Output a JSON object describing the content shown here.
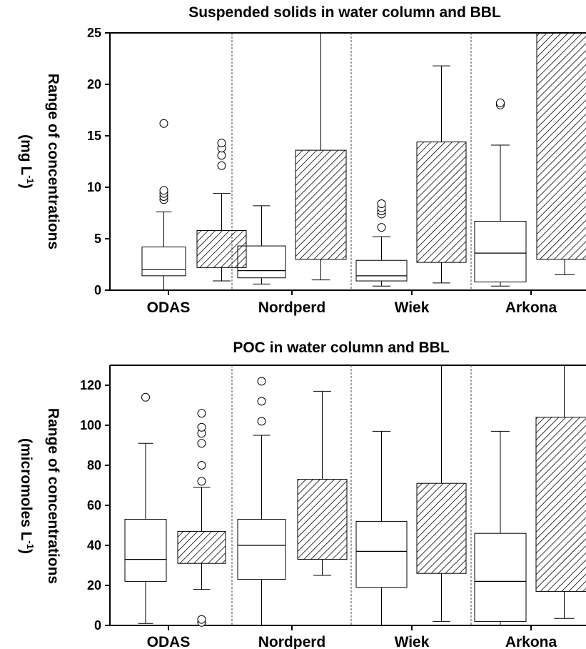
{
  "chart_data": [
    {
      "type": "box",
      "title": "Suspended solids in water column and BBL",
      "ylabel_line1": "Range of concentrations",
      "ylabel_line2_prefix": "(mg L",
      "ylabel_line2_sup": "-1",
      "ylabel_line2_suffix": ")",
      "ylim": [
        0,
        25
      ],
      "yticks": [
        "0",
        "5",
        "10",
        "15",
        "20",
        "25"
      ],
      "categories": [
        "ODAS",
        "Nordperd",
        "Wiek",
        "Arkona"
      ],
      "series": [
        {
          "style": "open",
          "boxes": [
            {
              "min": 0.0,
              "q1": 1.4,
              "median": 2.0,
              "q3": 4.2,
              "max": 7.6,
              "outliers": [
                8.8,
                9.1,
                9.4,
                9.7,
                16.2
              ]
            },
            {
              "min": 0.6,
              "q1": 1.2,
              "median": 1.9,
              "q3": 4.3,
              "max": 8.2,
              "outliers": []
            },
            {
              "min": 0.4,
              "q1": 0.9,
              "median": 1.4,
              "q3": 2.9,
              "max": 5.2,
              "outliers": [
                6.1,
                7.4,
                7.7,
                8.0,
                8.4
              ]
            },
            {
              "min": 0.4,
              "q1": 0.8,
              "median": 3.6,
              "q3": 6.7,
              "max": 14.1,
              "outliers": [
                18.0,
                18.2
              ]
            }
          ]
        },
        {
          "style": "hatched",
          "boxes": [
            {
              "min": 0.9,
              "q1": 2.2,
              "q3": 5.8,
              "max": 9.4,
              "outliers": [
                12.1,
                13.1,
                13.8,
                14.3
              ]
            },
            {
              "min": 1.0,
              "q1": 3.0,
              "q3": 13.6,
              "max": 25,
              "outliers": []
            },
            {
              "min": 0.7,
              "q1": 2.7,
              "q3": 14.4,
              "max": 21.8,
              "outliers": []
            },
            {
              "min": 1.5,
              "q1": 3.0,
              "q3": 25,
              "max": 25,
              "outliers": []
            }
          ]
        }
      ]
    },
    {
      "type": "box",
      "title": "POC in water column and BBL",
      "ylabel_line1": "Range of concentrations",
      "ylabel_line2_prefix": "(micromoles L",
      "ylabel_line2_sup": "-1",
      "ylabel_line2_suffix": ")",
      "ylim": [
        0,
        130
      ],
      "yticks": [
        "0",
        "20",
        "40",
        "60",
        "80",
        "100",
        "120"
      ],
      "categories": [
        "ODAS",
        "Nordperd",
        "Wiek",
        "Arkona"
      ],
      "series": [
        {
          "style": "open",
          "boxes": [
            {
              "min": 1.0,
              "q1": 22,
              "median": 33,
              "q3": 53,
              "max": 91,
              "outliers": [
                114
              ]
            },
            {
              "min": 0.0,
              "q1": 23,
              "median": 40,
              "q3": 53,
              "max": 95,
              "outliers": [
                102,
                112,
                122
              ]
            },
            {
              "min": 0.0,
              "q1": 19,
              "median": 37,
              "q3": 52,
              "max": 97,
              "outliers": []
            },
            {
              "min": 0.0,
              "q1": 2,
              "median": 22,
              "q3": 46,
              "max": 97,
              "outliers": []
            }
          ]
        },
        {
          "style": "hatched",
          "boxes": [
            {
              "min": 18,
              "q1": 31,
              "q3": 47,
              "max": 69,
              "outliers": [
                1.5,
                3,
                72,
                80,
                91,
                96,
                99,
                106
              ]
            },
            {
              "min": 25,
              "q1": 33,
              "q3": 73,
              "max": 117,
              "outliers": []
            },
            {
              "min": 2,
              "q1": 26,
              "q3": 71,
              "max": 130,
              "outliers": []
            },
            {
              "min": 3.5,
              "q1": 17,
              "q3": 104,
              "max": 130,
              "outliers": []
            }
          ]
        }
      ]
    }
  ]
}
